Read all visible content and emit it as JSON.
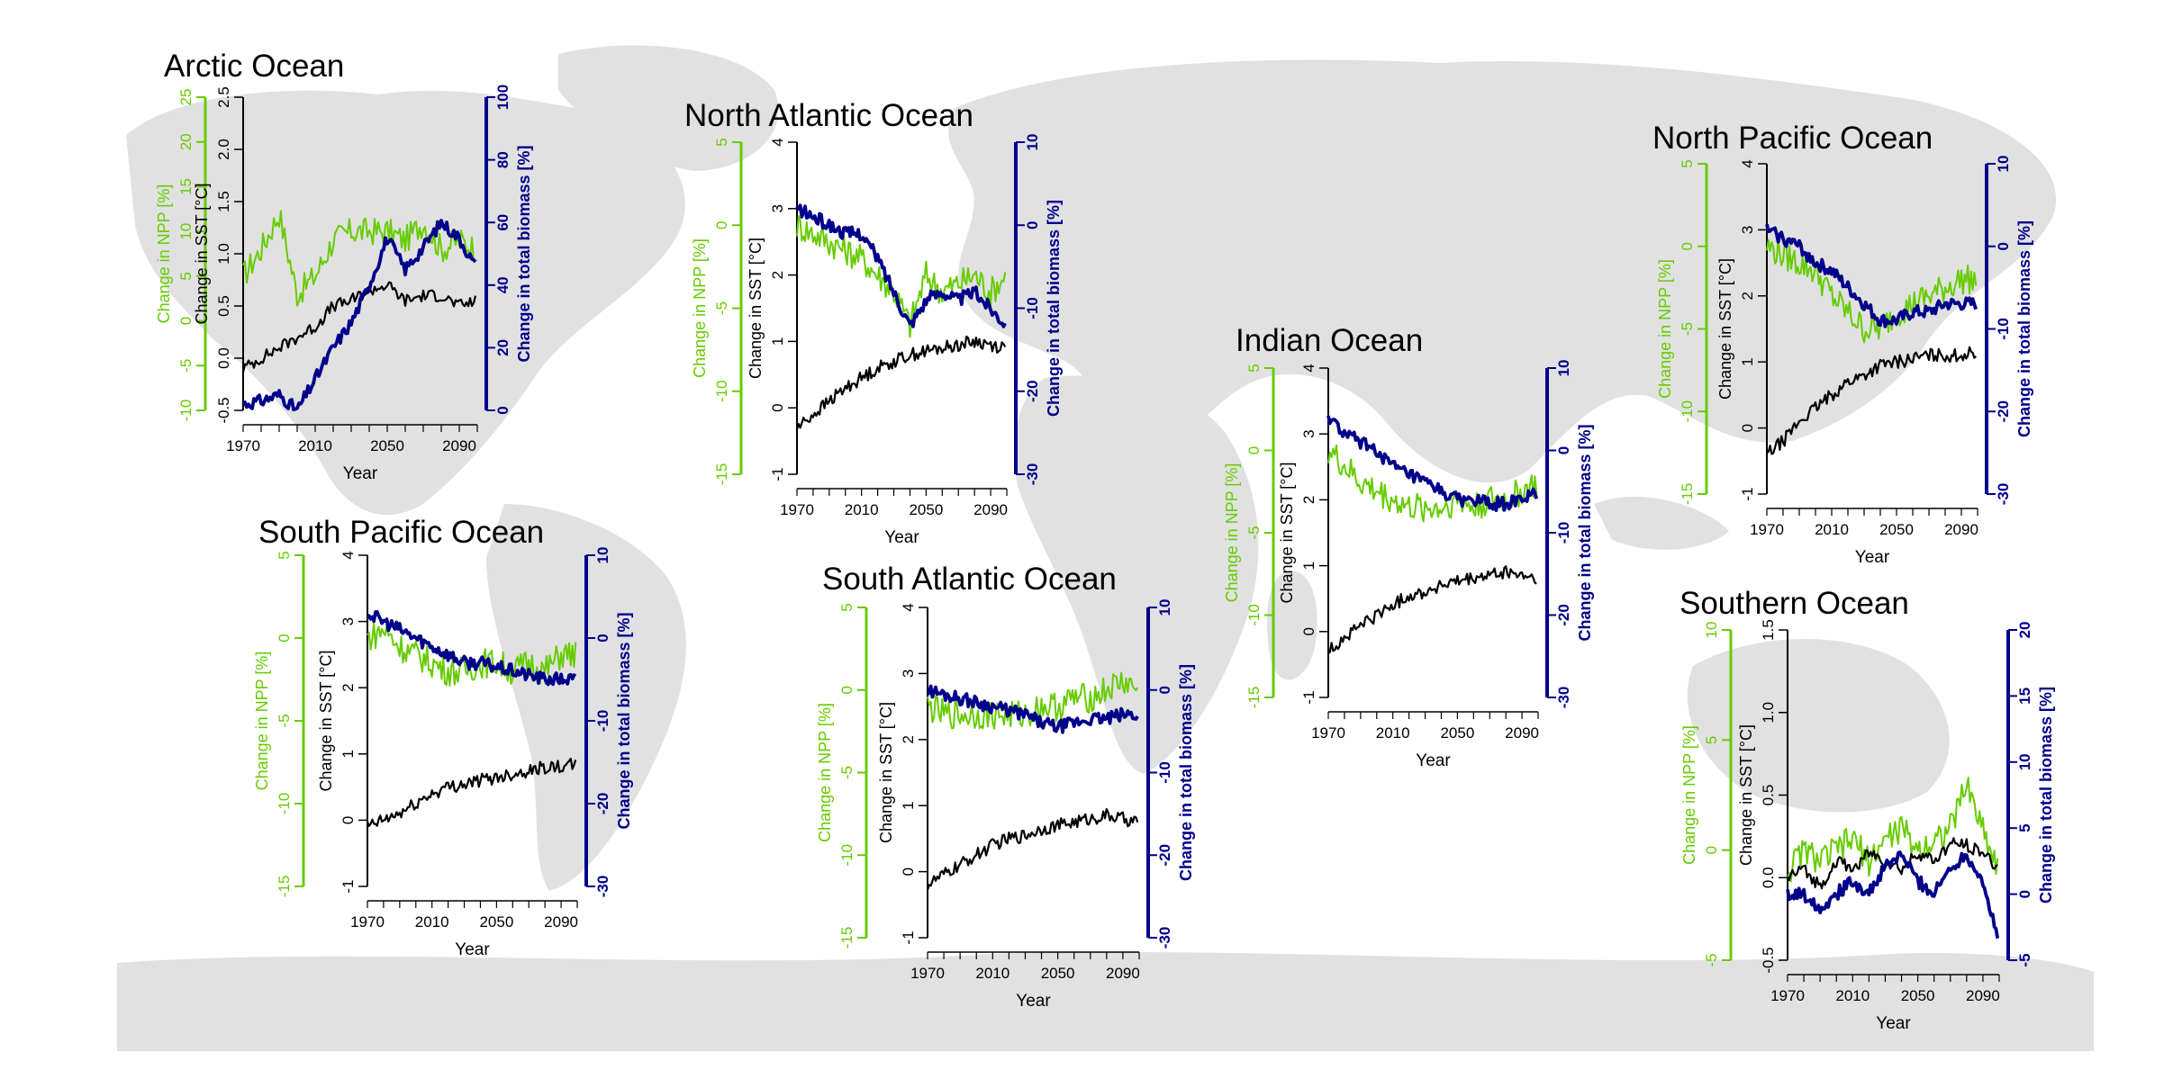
{
  "colors": {
    "npp": "#66cc00",
    "sst": "#000000",
    "biomass": "#00008b",
    "land": "#e1e1e1"
  },
  "common": {
    "xlabel": "Year",
    "x_ticks": [
      1970,
      2010,
      2050,
      2090
    ],
    "x_range": [
      1970,
      2100
    ],
    "npp_label": "Change in NPP [%]",
    "sst_label": "Change in SST [°C]",
    "biomass_label": "Change in total biomass [%]"
  },
  "chart_data": [
    {
      "type": "line",
      "title": "Arctic Ocean",
      "xlabel": "Year",
      "npp_range": [
        -10,
        25
      ],
      "npp_ticks": [
        -10,
        -5,
        0,
        5,
        10,
        15,
        20,
        25
      ],
      "sst_range": [
        -0.5,
        2.5
      ],
      "sst_ticks": [
        -0.5,
        0.0,
        0.5,
        1.0,
        1.5,
        2.0,
        2.5
      ],
      "bio_range": [
        0,
        100
      ],
      "bio_ticks": [
        0,
        20,
        40,
        60,
        80,
        100
      ],
      "series": [
        {
          "key": "npp",
          "x": [
            1970,
            1980,
            1990,
            2000,
            2010,
            2020,
            2030,
            2040,
            2050,
            2060,
            2070,
            2080,
            2090,
            2100
          ],
          "values": [
            5,
            8,
            12,
            3,
            5,
            9,
            10,
            10,
            10,
            9,
            11,
            8,
            9,
            8
          ]
        },
        {
          "key": "sst",
          "x": [
            1970,
            1980,
            1990,
            2000,
            2010,
            2020,
            2030,
            2040,
            2050,
            2060,
            2070,
            2080,
            2090,
            2100
          ],
          "values": [
            -0.1,
            0.0,
            0.1,
            0.2,
            0.3,
            0.5,
            0.55,
            0.65,
            0.7,
            0.55,
            0.6,
            0.6,
            0.5,
            0.55
          ]
        },
        {
          "key": "biomass",
          "x": [
            1970,
            1980,
            1990,
            2000,
            2010,
            2020,
            2030,
            2040,
            2050,
            2060,
            2070,
            2080,
            2090,
            2100
          ],
          "values": [
            2,
            3,
            5,
            0,
            10,
            20,
            28,
            40,
            55,
            45,
            52,
            60,
            55,
            45
          ]
        }
      ]
    },
    {
      "type": "line",
      "title": "North Atlantic Ocean",
      "xlabel": "Year",
      "npp_range": [
        -15,
        5
      ],
      "npp_ticks": [
        -15,
        -10,
        -5,
        0,
        5
      ],
      "sst_range": [
        -1,
        4
      ],
      "sst_ticks": [
        -1,
        0,
        1,
        2,
        3,
        4
      ],
      "bio_range": [
        -30,
        10
      ],
      "bio_ticks": [
        -30,
        -20,
        -10,
        0,
        10
      ],
      "series": [
        {
          "key": "npp",
          "x": [
            1970,
            1980,
            1990,
            2000,
            2010,
            2020,
            2030,
            2040,
            2050,
            2060,
            2070,
            2080,
            2090,
            2100
          ],
          "values": [
            0,
            -0.5,
            -1,
            -1.5,
            -2,
            -3,
            -4,
            -6,
            -3,
            -4,
            -3.5,
            -3,
            -4,
            -3
          ]
        },
        {
          "key": "sst",
          "x": [
            1970,
            1980,
            1990,
            2000,
            2010,
            2020,
            2030,
            2040,
            2050,
            2060,
            2070,
            2080,
            2090,
            2100
          ],
          "values": [
            -0.3,
            -0.1,
            0.1,
            0.3,
            0.45,
            0.6,
            0.7,
            0.8,
            0.85,
            0.9,
            0.95,
            1.0,
            0.95,
            0.9
          ]
        },
        {
          "key": "biomass",
          "x": [
            1970,
            1980,
            1990,
            2000,
            2010,
            2020,
            2030,
            2040,
            2050,
            2060,
            2070,
            2080,
            2090,
            2100
          ],
          "values": [
            2,
            1,
            0,
            -1,
            -1,
            -4,
            -8,
            -12,
            -9,
            -8,
            -9,
            -8,
            -10,
            -12
          ]
        }
      ]
    },
    {
      "type": "line",
      "title": "North Pacific Ocean",
      "xlabel": "Year",
      "npp_range": [
        -15,
        5
      ],
      "npp_ticks": [
        -15,
        -10,
        -5,
        0,
        5
      ],
      "sst_range": [
        -1,
        4
      ],
      "sst_ticks": [
        -1,
        0,
        1,
        2,
        3,
        4
      ],
      "bio_range": [
        -30,
        10
      ],
      "bio_ticks": [
        -30,
        -20,
        -10,
        0,
        10
      ],
      "series": [
        {
          "key": "npp",
          "x": [
            1970,
            1980,
            1990,
            2000,
            2010,
            2020,
            2030,
            2040,
            2050,
            2060,
            2070,
            2080,
            2090,
            2100
          ],
          "values": [
            0,
            -0.5,
            -1,
            -1.5,
            -3,
            -4,
            -5,
            -5,
            -4,
            -3.5,
            -3,
            -2.5,
            -2,
            -2
          ]
        },
        {
          "key": "sst",
          "x": [
            1970,
            1980,
            1990,
            2000,
            2010,
            2020,
            2030,
            2040,
            2050,
            2060,
            2070,
            2080,
            2090,
            2100
          ],
          "values": [
            -0.4,
            -0.2,
            0.1,
            0.3,
            0.5,
            0.7,
            0.8,
            0.95,
            1.0,
            1.05,
            1.1,
            1.1,
            1.1,
            1.15
          ]
        },
        {
          "key": "biomass",
          "x": [
            1970,
            1980,
            1990,
            2000,
            2010,
            2020,
            2030,
            2040,
            2050,
            2060,
            2070,
            2080,
            2090,
            2100
          ],
          "values": [
            2,
            1,
            0,
            -2,
            -3,
            -5,
            -7,
            -9,
            -9,
            -8,
            -8,
            -7,
            -7,
            -7
          ]
        }
      ]
    },
    {
      "type": "line",
      "title": "South Pacific Ocean",
      "xlabel": "Year",
      "npp_range": [
        -15,
        5
      ],
      "npp_ticks": [
        -15,
        -10,
        -5,
        0,
        5
      ],
      "sst_range": [
        -1,
        4
      ],
      "sst_ticks": [
        -1,
        0,
        1,
        2,
        3,
        4
      ],
      "bio_range": [
        -30,
        10
      ],
      "bio_ticks": [
        -30,
        -20,
        -10,
        0,
        10
      ],
      "series": [
        {
          "key": "npp",
          "x": [
            1970,
            1980,
            1990,
            2000,
            2010,
            2020,
            2030,
            2040,
            2050,
            2060,
            2070,
            2080,
            2090,
            2100
          ],
          "values": [
            0,
            0.5,
            -0.5,
            -1,
            -1.5,
            -2,
            -2,
            -1.5,
            -1.5,
            -2,
            -1.5,
            -2,
            -1,
            -1
          ]
        },
        {
          "key": "sst",
          "x": [
            1970,
            1980,
            1990,
            2000,
            2010,
            2020,
            2030,
            2040,
            2050,
            2060,
            2070,
            2080,
            2090,
            2100
          ],
          "values": [
            -0.1,
            0.0,
            0.1,
            0.25,
            0.4,
            0.5,
            0.55,
            0.6,
            0.65,
            0.7,
            0.75,
            0.8,
            0.8,
            0.85
          ]
        },
        {
          "key": "biomass",
          "x": [
            1970,
            1980,
            1990,
            2000,
            2010,
            2020,
            2030,
            2040,
            2050,
            2060,
            2070,
            2080,
            2090,
            2100
          ],
          "values": [
            3,
            2,
            1,
            0,
            -1,
            -2,
            -3,
            -3,
            -3.5,
            -4,
            -4.5,
            -5,
            -5,
            -5
          ]
        }
      ]
    },
    {
      "type": "line",
      "title": "South Atlantic Ocean",
      "xlabel": "Year",
      "npp_range": [
        -15,
        5
      ],
      "npp_ticks": [
        -15,
        -10,
        -5,
        0,
        5
      ],
      "sst_range": [
        -1,
        4
      ],
      "sst_ticks": [
        -1,
        0,
        1,
        2,
        3,
        4
      ],
      "bio_range": [
        -30,
        10
      ],
      "bio_ticks": [
        -30,
        -20,
        -10,
        0,
        10
      ],
      "series": [
        {
          "key": "npp",
          "x": [
            1970,
            1980,
            1990,
            2000,
            2010,
            2020,
            2030,
            2040,
            2050,
            2060,
            2070,
            2080,
            2090,
            2100
          ],
          "values": [
            -1,
            -1.5,
            -1.5,
            -1.5,
            -1.5,
            -1.5,
            -1.5,
            -1,
            -1,
            -0.5,
            -0.5,
            0,
            0.5,
            0
          ]
        },
        {
          "key": "sst",
          "x": [
            1970,
            1980,
            1990,
            2000,
            2010,
            2020,
            2030,
            2040,
            2050,
            2060,
            2070,
            2080,
            2090,
            2100
          ],
          "values": [
            -0.2,
            -0.05,
            0.1,
            0.25,
            0.4,
            0.5,
            0.55,
            0.65,
            0.7,
            0.75,
            0.8,
            0.85,
            0.8,
            0.75
          ]
        },
        {
          "key": "biomass",
          "x": [
            1970,
            1980,
            1990,
            2000,
            2010,
            2020,
            2030,
            2040,
            2050,
            2060,
            2070,
            2080,
            2090,
            2100
          ],
          "values": [
            0,
            -0.5,
            -1,
            -1.5,
            -2,
            -2.5,
            -3,
            -4,
            -4.5,
            -4,
            -3.5,
            -3.5,
            -3,
            -3
          ]
        }
      ]
    },
    {
      "type": "line",
      "title": "Indian Ocean",
      "xlabel": "Year",
      "npp_range": [
        -15,
        5
      ],
      "npp_ticks": [
        -15,
        -10,
        -5,
        0,
        5
      ],
      "sst_range": [
        -1,
        4
      ],
      "sst_ticks": [
        -1,
        0,
        1,
        2,
        3,
        4
      ],
      "bio_range": [
        -30,
        10
      ],
      "bio_ticks": [
        -30,
        -20,
        -10,
        0,
        10
      ],
      "series": [
        {
          "key": "npp",
          "x": [
            1970,
            1980,
            1990,
            2000,
            2010,
            2020,
            2030,
            2040,
            2050,
            2060,
            2070,
            2080,
            2090,
            2100
          ],
          "values": [
            0,
            -1,
            -2,
            -2.5,
            -3,
            -3.5,
            -3.5,
            -3.5,
            -3,
            -3.5,
            -3,
            -3,
            -2.5,
            -2
          ]
        },
        {
          "key": "sst",
          "x": [
            1970,
            1980,
            1990,
            2000,
            2010,
            2020,
            2030,
            2040,
            2050,
            2060,
            2070,
            2080,
            2090,
            2100
          ],
          "values": [
            -0.3,
            -0.1,
            0.1,
            0.25,
            0.4,
            0.55,
            0.6,
            0.7,
            0.75,
            0.8,
            0.85,
            0.9,
            0.85,
            0.8
          ]
        },
        {
          "key": "biomass",
          "x": [
            1970,
            1980,
            1990,
            2000,
            2010,
            2020,
            2030,
            2040,
            2050,
            2060,
            2070,
            2080,
            2090,
            2100
          ],
          "values": [
            4,
            2,
            1,
            0,
            -2,
            -3,
            -4,
            -5,
            -6,
            -6,
            -6.5,
            -6.5,
            -6,
            -5
          ]
        }
      ]
    },
    {
      "type": "line",
      "title": "Southern Ocean",
      "xlabel": "Year",
      "npp_range": [
        -5,
        10
      ],
      "npp_ticks": [
        -5,
        0,
        5,
        10
      ],
      "sst_range": [
        -0.5,
        1.5
      ],
      "sst_ticks": [
        -0.5,
        0.0,
        0.5,
        1.0,
        1.5
      ],
      "bio_range": [
        -5,
        20
      ],
      "bio_ticks": [
        -5,
        0,
        5,
        10,
        15,
        20
      ],
      "series": [
        {
          "key": "npp",
          "x": [
            1970,
            1980,
            1990,
            2000,
            2010,
            2020,
            2030,
            2040,
            2050,
            2060,
            2070,
            2080,
            2090,
            2100
          ],
          "values": [
            -1,
            0,
            -0.5,
            0,
            0.5,
            -0.5,
            0.5,
            1,
            0,
            0.5,
            1,
            3,
            1,
            -1
          ]
        },
        {
          "key": "sst",
          "x": [
            1970,
            1980,
            1990,
            2000,
            2010,
            2020,
            2030,
            2040,
            2050,
            2060,
            2070,
            2080,
            2090,
            2100
          ],
          "values": [
            0.0,
            0.05,
            -0.05,
            0.1,
            0.05,
            0.15,
            0.1,
            0.05,
            0.15,
            0.1,
            0.2,
            0.2,
            0.15,
            0.05
          ]
        },
        {
          "key": "biomass",
          "x": [
            1970,
            1980,
            1990,
            2000,
            2010,
            2020,
            2030,
            2040,
            2050,
            2060,
            2070,
            2080,
            2090,
            2100
          ],
          "values": [
            0,
            0,
            -1,
            0,
            1,
            0,
            2,
            3,
            1,
            0,
            2,
            3,
            1,
            -4
          ]
        }
      ]
    }
  ]
}
